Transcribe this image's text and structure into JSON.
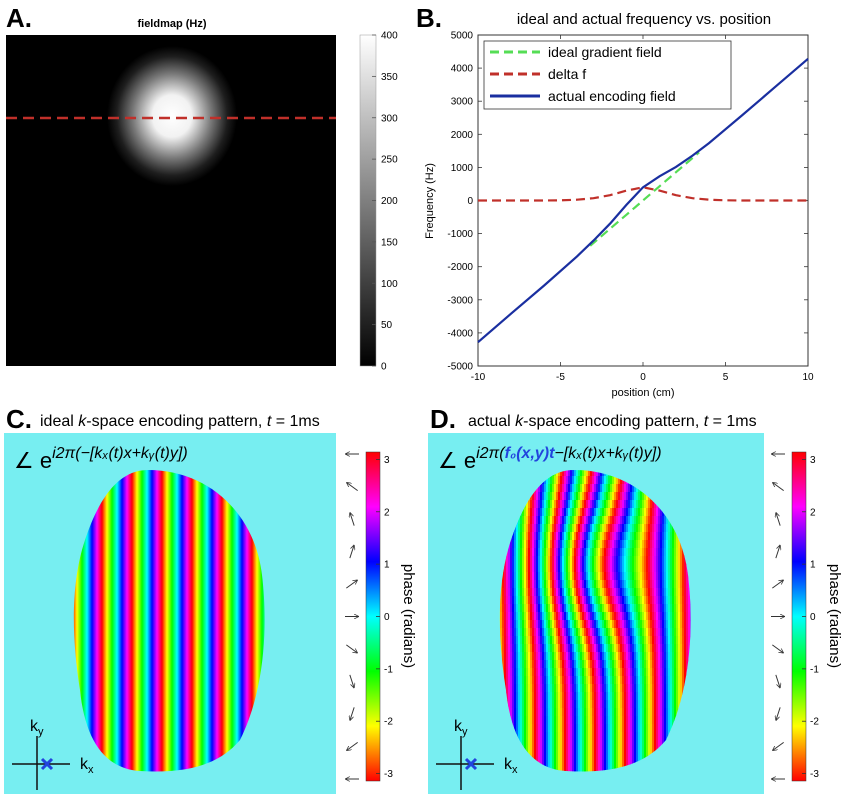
{
  "panel_a": {
    "letter": "A.",
    "title": "fieldmap (Hz)",
    "colorbar_ticks": [
      "0",
      "50",
      "100",
      "150",
      "200",
      "250",
      "300",
      "350",
      "400"
    ]
  },
  "panel_b": {
    "letter": "B.",
    "title": "ideal and actual frequency vs. position",
    "xlabel": "position (cm)",
    "ylabel": "Frequency (Hz)",
    "legend": [
      "ideal gradient field",
      "delta f",
      "actual encoding field"
    ]
  },
  "panel_c": {
    "letter": "C.",
    "title_prefix": "ideal ",
    "title_k": "k",
    "title_mid": "-space encoding pattern, ",
    "title_t": "t",
    "title_eq": " = 1ms",
    "formula_prefix": "∠ e",
    "formula_exp": "i2π(−[kₓ(t)x+kᵧ(t)y])",
    "axis_ky": "k",
    "axis_ky_sub": "y",
    "axis_kx": "k",
    "axis_kx_sub": "x"
  },
  "panel_d": {
    "letter": "D.",
    "title_prefix": "actual ",
    "title_k": "k",
    "title_mid": "-space encoding pattern, ",
    "title_t": "t",
    "title_eq": " = 1ms",
    "formula_prefix": "∠ e",
    "formula_exp_a": "i2π(",
    "formula_exp_f": "f₀(x,y)t",
    "formula_exp_b": "−[kₓ(t)x+kᵧ(t)y])",
    "axis_ky": "k",
    "axis_ky_sub": "y",
    "axis_kx": "k",
    "axis_kx_sub": "x"
  },
  "phase_colorbar": {
    "label": "phase (radians)",
    "ticks": [
      "3",
      "2",
      "1",
      "0",
      "-1",
      "-2",
      "-3"
    ]
  },
  "colors": {
    "background_cyan": "#77eef1",
    "ideal": "#55dd55",
    "delta": "#c0302a",
    "actual": "#1a2fa0",
    "kx_marker": "#2244dd"
  },
  "chart_data": [
    {
      "type": "heatmap",
      "title": "fieldmap (Hz)",
      "colorbar_range": [
        0,
        400
      ],
      "colormap": "gray",
      "feature": "single gaussian hot spot peaking near 400 Hz in upper-center region",
      "profile_line": "dashed red horizontal line through the hot spot"
    },
    {
      "type": "line",
      "title": "ideal and actual frequency vs. position",
      "xlabel": "position (cm)",
      "ylabel": "Frequency (Hz)",
      "xlim": [
        -10,
        10
      ],
      "ylim": [
        -5000,
        5000
      ],
      "xticks": [
        -10,
        -5,
        0,
        5,
        10
      ],
      "yticks": [
        -5000,
        -4000,
        -3000,
        -2000,
        -1000,
        0,
        1000,
        2000,
        3000,
        4000,
        5000
      ],
      "legend_position": "top-left",
      "series": [
        {
          "name": "ideal gradient field",
          "style": "dashed",
          "x": [
            -3.2,
            -2,
            -1,
            0,
            1,
            2,
            3.4
          ],
          "y": [
            -1370,
            -855,
            -430,
            0,
            430,
            855,
            1455
          ]
        },
        {
          "name": "delta f",
          "style": "dashed",
          "x": [
            -10,
            -6,
            -5,
            -4,
            -3,
            -2,
            -1,
            0,
            1,
            2,
            3,
            4,
            5,
            6,
            10
          ],
          "y": [
            0,
            0,
            5,
            25,
            70,
            160,
            300,
            400,
            300,
            160,
            70,
            25,
            5,
            0,
            0
          ]
        },
        {
          "name": "actual encoding field",
          "style": "solid",
          "x": [
            -10,
            -8,
            -6,
            -4,
            -3,
            -2,
            -1,
            0,
            1,
            2,
            3,
            4,
            6,
            8,
            10
          ],
          "y": [
            -4280,
            -3420,
            -2570,
            -1690,
            -1210,
            -700,
            -130,
            400,
            730,
            1015,
            1355,
            1735,
            2570,
            3425,
            4280
          ]
        }
      ]
    },
    {
      "type": "heatmap",
      "title": "ideal k-space encoding pattern, t = 1ms",
      "colormap": "hsv phase",
      "colorbar_range": [
        -3.14,
        3.14
      ],
      "stripes_across_head": 10,
      "pattern": "straight vertical phase stripes"
    },
    {
      "type": "heatmap",
      "title": "actual k-space encoding pattern, t = 1ms",
      "colormap": "hsv phase",
      "colorbar_range": [
        -3.14,
        3.14
      ],
      "pattern": "vertical phase stripes bent by off-resonance in center"
    }
  ]
}
